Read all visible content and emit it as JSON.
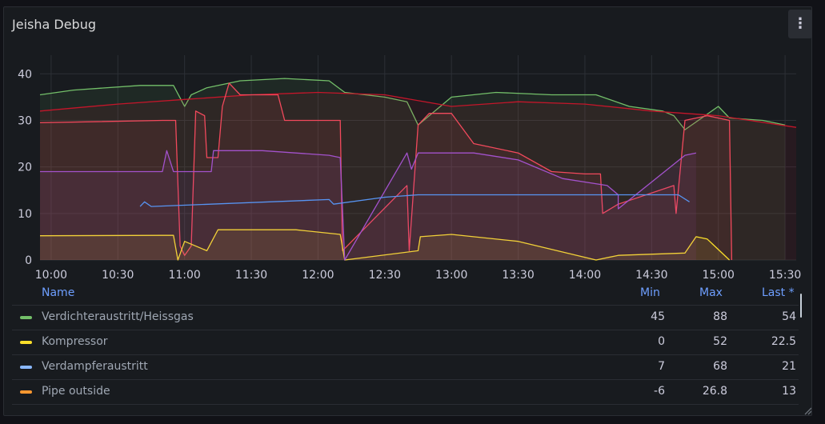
{
  "panel": {
    "title": "Jeisha Debug"
  },
  "legend": {
    "headers": {
      "name": "Name",
      "min": "Min",
      "max": "Max",
      "last": "Last *"
    },
    "rows": [
      {
        "name": "Verdichteraustritt/Heissgas",
        "color": "#73bf69",
        "min": "45",
        "max": "88",
        "last": "54"
      },
      {
        "name": "Kompressor",
        "color": "#fade2a",
        "min": "0",
        "max": "52",
        "last": "22.5"
      },
      {
        "name": "Verdampferaustritt",
        "color": "#8ab8ff",
        "min": "7",
        "max": "68",
        "last": "21"
      },
      {
        "name": "Pipe outside",
        "color": "#ff9830",
        "min": "-6",
        "max": "26.8",
        "last": "13"
      }
    ]
  },
  "chart_data": {
    "type": "line",
    "x_unit": "time (HH:MM)",
    "xlim": [
      "09:55",
      "15:35"
    ],
    "ylim": [
      0,
      44
    ],
    "y_ticks": [
      0,
      10,
      20,
      30,
      40
    ],
    "x_ticks": [
      "10:00",
      "10:30",
      "11:00",
      "11:30",
      "12:00",
      "12:30",
      "13:00",
      "13:30",
      "14:00",
      "14:30",
      "15:00",
      "15:30"
    ],
    "grid": true,
    "legend_position": "bottom",
    "series": [
      {
        "color": "#73bf69",
        "fill": true,
        "x": [
          "09:55",
          "10:10",
          "10:40",
          "10:55",
          "11:00",
          "11:03",
          "11:10",
          "11:25",
          "11:45",
          "12:05",
          "12:12",
          "12:30",
          "12:40",
          "12:45",
          "13:00",
          "13:20",
          "13:45",
          "14:05",
          "14:20",
          "14:35",
          "14:40",
          "14:45",
          "15:00",
          "15:05",
          "15:20",
          "15:30"
        ],
        "y": [
          35.5,
          36.5,
          37.5,
          37.5,
          33,
          35.5,
          37,
          38.5,
          39,
          38.5,
          36,
          35,
          34,
          29,
          35,
          36,
          35.5,
          35.5,
          33,
          32,
          31,
          28,
          33,
          30.5,
          30,
          29
        ]
      },
      {
        "color": "#c4162a",
        "fill": true,
        "x": [
          "09:55",
          "10:30",
          "11:00",
          "11:30",
          "12:00",
          "12:30",
          "13:00",
          "13:30",
          "14:00",
          "14:30",
          "15:00",
          "15:35"
        ],
        "y": [
          32,
          33.5,
          34.5,
          35.5,
          36,
          35.5,
          33,
          34,
          33.5,
          32,
          31,
          28.5
        ]
      },
      {
        "color": "#f2495c",
        "fill": true,
        "x": [
          "09:55",
          "10:50",
          "10:56",
          "10:58",
          "11:00",
          "11:03",
          "11:05",
          "11:09",
          "11:10",
          "11:15",
          "11:17",
          "11:20",
          "11:25",
          "11:42",
          "11:45",
          "12:05",
          "12:10",
          "12:11",
          "12:40",
          "12:41",
          "12:45",
          "12:50",
          "13:00",
          "13:10",
          "13:30",
          "13:45",
          "14:00",
          "14:07",
          "14:08",
          "14:15",
          "14:40",
          "14:41",
          "14:45",
          "14:55",
          "15:05",
          "15:06"
        ],
        "y": [
          29.5,
          30,
          30,
          3,
          1,
          3,
          32,
          31,
          22,
          22,
          33,
          38,
          35.5,
          35.5,
          30,
          30,
          30,
          2,
          16,
          2,
          29,
          31.5,
          31.5,
          25,
          23,
          19,
          18.5,
          18.5,
          10,
          12,
          16,
          10,
          30,
          31,
          30,
          0
        ]
      },
      {
        "color": "#fade2a",
        "fill": true,
        "x": [
          "09:55",
          "10:50",
          "10:55",
          "10:57",
          "11:00",
          "11:10",
          "11:15",
          "11:30",
          "11:50",
          "12:10",
          "12:12",
          "12:45",
          "12:46",
          "13:00",
          "13:30",
          "14:05",
          "14:15",
          "14:45",
          "14:50",
          "14:55",
          "15:05"
        ],
        "y": [
          5.2,
          5.3,
          5.3,
          0,
          4,
          2,
          6.5,
          6.5,
          6.5,
          5.5,
          0,
          2,
          5,
          5.5,
          4,
          0,
          1,
          1.5,
          5,
          4.5,
          0
        ]
      },
      {
        "color": "#a352cc",
        "fill": true,
        "x": [
          "09:55",
          "10:50",
          "10:52",
          "10:55",
          "11:12",
          "11:13",
          "11:35",
          "12:05",
          "12:10",
          "12:12",
          "12:40",
          "12:42",
          "12:45",
          "13:10",
          "13:30",
          "13:50",
          "14:10",
          "14:15",
          "14:15",
          "14:45",
          "14:50"
        ],
        "y": [
          19,
          19,
          23.5,
          19,
          19,
          23.5,
          23.5,
          22.5,
          22,
          0,
          23,
          19.5,
          23,
          23,
          21.5,
          17.5,
          16,
          14,
          11,
          22.5,
          23
        ]
      },
      {
        "color": "#5794f2",
        "fill": false,
        "x": [
          "10:40",
          "10:42",
          "10:45",
          "12:05",
          "12:07",
          "12:30",
          "12:45",
          "13:00",
          "13:30",
          "14:00",
          "14:15",
          "14:42",
          "14:47"
        ],
        "y": [
          11.5,
          12.5,
          11.5,
          13,
          12,
          13.5,
          14,
          14,
          14,
          14,
          14,
          14,
          12.5
        ]
      }
    ]
  }
}
